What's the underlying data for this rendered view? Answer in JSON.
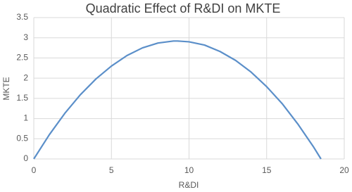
{
  "chart_data": {
    "type": "line",
    "title": "Quadratic Effect of R&DI on MKTE",
    "x_label": "R&DI",
    "y_label": "MKTE",
    "x": [
      0,
      1,
      2,
      3,
      4,
      5,
      6,
      7,
      8,
      9,
      9.25,
      10,
      11,
      12,
      13,
      14,
      15,
      16,
      17,
      18,
      18.5
    ],
    "series": [
      {
        "name": "MKTE",
        "color": "#5b8fc9",
        "values": [
          0,
          0.6,
          1.13,
          1.59,
          1.98,
          2.3,
          2.56,
          2.75,
          2.87,
          2.92,
          2.92,
          2.9,
          2.82,
          2.66,
          2.44,
          2.15,
          1.79,
          1.37,
          0.87,
          0.31,
          0
        ]
      }
    ],
    "xlim": [
      0,
      20
    ],
    "xticks": [
      0,
      5,
      10,
      15,
      20
    ],
    "ylim": [
      0,
      3.5
    ],
    "yticks": [
      0,
      0.5,
      1,
      1.5,
      2,
      2.5,
      3,
      3.5
    ],
    "grid": true
  }
}
